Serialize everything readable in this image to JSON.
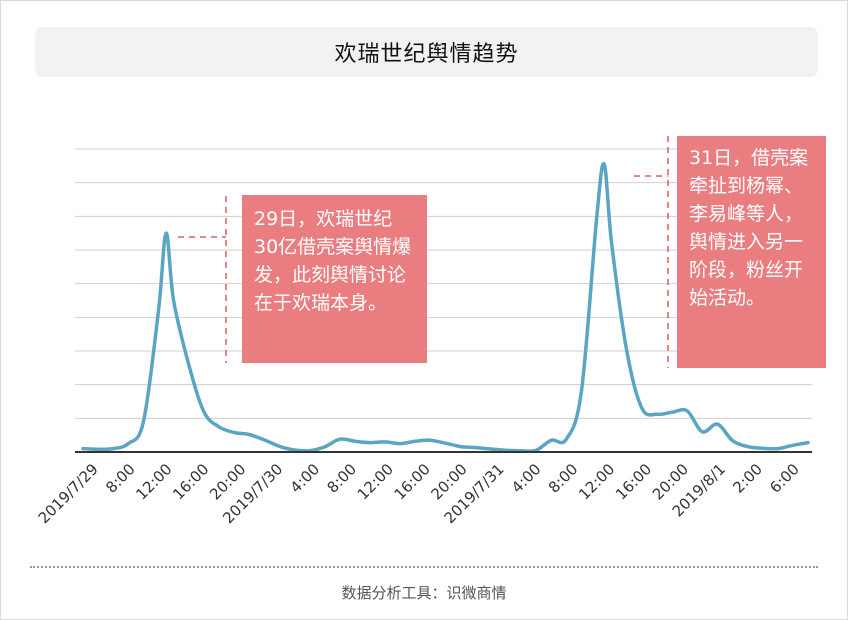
{
  "title": "欢瑞世纪舆情趋势",
  "footer": "数据分析工具：识微商情",
  "colors": {
    "line": "#5aa5c2",
    "callout": "#e97d80",
    "grid": "#cfcfcf",
    "axis": "#333333",
    "dash": "#e05a5e"
  },
  "chart_data": {
    "type": "line",
    "title": "欢瑞世纪舆情趋势",
    "xlabel": "",
    "ylabel": "",
    "grid": true,
    "ylim": [
      0,
      9
    ],
    "x_tick_labels": [
      "2019/7/29",
      "8:00",
      "12:00",
      "16:00",
      "20:00",
      "2019/7/30",
      "4:00",
      "8:00",
      "12:00",
      "16:00",
      "20:00",
      "2019/7/31",
      "4:00",
      "8:00",
      "12:00",
      "16:00",
      "20:00",
      "2019/8/1",
      "2:00",
      "6:00"
    ],
    "series": [
      {
        "values": [
          [
            0,
            0.1
          ],
          [
            1,
            0.08
          ],
          [
            2,
            0.1
          ],
          [
            3,
            0.25
          ],
          [
            4,
            0.9
          ],
          [
            5,
            4.2
          ],
          [
            5.5,
            6.5
          ],
          [
            6,
            4.5
          ],
          [
            7,
            2.6
          ],
          [
            8,
            1.2
          ],
          [
            9,
            0.75
          ],
          [
            10,
            0.58
          ],
          [
            11,
            0.52
          ],
          [
            12,
            0.36
          ],
          [
            13,
            0.17
          ],
          [
            14,
            0.06
          ],
          [
            15,
            0.04
          ],
          [
            16,
            0.15
          ],
          [
            17,
            0.38
          ],
          [
            18,
            0.32
          ],
          [
            19,
            0.28
          ],
          [
            20,
            0.3
          ],
          [
            21,
            0.25
          ],
          [
            22,
            0.32
          ],
          [
            23,
            0.35
          ],
          [
            24,
            0.26
          ],
          [
            25,
            0.16
          ],
          [
            26,
            0.13
          ],
          [
            27,
            0.09
          ],
          [
            28,
            0.05
          ],
          [
            29,
            0.04
          ],
          [
            30,
            0.05
          ],
          [
            31,
            0.35
          ],
          [
            32,
            0.38
          ],
          [
            33,
            1.8
          ],
          [
            34,
            6.9
          ],
          [
            34.5,
            8.55
          ],
          [
            35,
            6.2
          ],
          [
            36,
            3.0
          ],
          [
            37,
            1.3
          ],
          [
            38,
            1.12
          ],
          [
            39,
            1.18
          ],
          [
            40,
            1.22
          ],
          [
            41,
            0.6
          ],
          [
            42,
            0.83
          ],
          [
            43,
            0.34
          ],
          [
            44,
            0.16
          ],
          [
            45,
            0.11
          ],
          [
            46,
            0.1
          ],
          [
            47,
            0.2
          ],
          [
            48,
            0.28
          ]
        ]
      }
    ],
    "annotations": [
      {
        "x": 5.5,
        "text": "29日，欢瑞世纪30亿借壳案舆情爆发，此刻舆情讨论在于欢瑞本身。"
      },
      {
        "x": 34.5,
        "text": "31日，借壳案牵扯到杨幂、李易峰等人，舆情进入另一阶段，粉丝开始活动。"
      }
    ]
  }
}
